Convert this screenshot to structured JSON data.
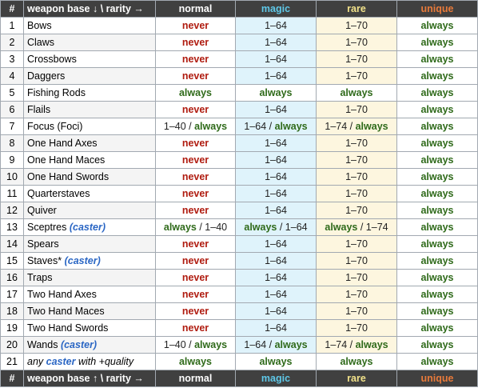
{
  "header": {
    "num": "#",
    "base": "weapon base ↓ \\ rarity →",
    "normal": "normal",
    "magic": "magic",
    "rare": "rare",
    "unique": "unique"
  },
  "footer": {
    "num": "#",
    "base": "weapon base ↑ \\ rarity →",
    "normal": "normal",
    "magic": "magic",
    "rare": "rare",
    "unique": "unique"
  },
  "rows": [
    {
      "num": "1",
      "name": "Bows",
      "normal": [
        [
          "never",
          "never"
        ]
      ],
      "magic": [
        [
          "range",
          "1–64"
        ]
      ],
      "rare": [
        [
          "range",
          "1–70"
        ]
      ],
      "unique": [
        [
          "always",
          "always"
        ]
      ]
    },
    {
      "num": "2",
      "name": "Claws",
      "normal": [
        [
          "never",
          "never"
        ]
      ],
      "magic": [
        [
          "range",
          "1–64"
        ]
      ],
      "rare": [
        [
          "range",
          "1–70"
        ]
      ],
      "unique": [
        [
          "always",
          "always"
        ]
      ]
    },
    {
      "num": "3",
      "name": "Crossbows",
      "normal": [
        [
          "never",
          "never"
        ]
      ],
      "magic": [
        [
          "range",
          "1–64"
        ]
      ],
      "rare": [
        [
          "range",
          "1–70"
        ]
      ],
      "unique": [
        [
          "always",
          "always"
        ]
      ]
    },
    {
      "num": "4",
      "name": "Daggers",
      "normal": [
        [
          "never",
          "never"
        ]
      ],
      "magic": [
        [
          "range",
          "1–64"
        ]
      ],
      "rare": [
        [
          "range",
          "1–70"
        ]
      ],
      "unique": [
        [
          "always",
          "always"
        ]
      ]
    },
    {
      "num": "5",
      "name": "Fishing Rods",
      "normal": [
        [
          "always",
          "always"
        ]
      ],
      "magic": [
        [
          "always",
          "always"
        ]
      ],
      "rare": [
        [
          "always",
          "always"
        ]
      ],
      "unique": [
        [
          "always",
          "always"
        ]
      ]
    },
    {
      "num": "6",
      "name": "Flails",
      "normal": [
        [
          "never",
          "never"
        ]
      ],
      "magic": [
        [
          "range",
          "1–64"
        ]
      ],
      "rare": [
        [
          "range",
          "1–70"
        ]
      ],
      "unique": [
        [
          "always",
          "always"
        ]
      ]
    },
    {
      "num": "7",
      "name": "Focus (Foci)",
      "normal": [
        [
          "range",
          "1–40 / "
        ],
        [
          "always",
          "always"
        ]
      ],
      "magic": [
        [
          "range",
          "1–64 / "
        ],
        [
          "always",
          "always"
        ]
      ],
      "rare": [
        [
          "range",
          "1–74 / "
        ],
        [
          "always",
          "always"
        ]
      ],
      "unique": [
        [
          "always",
          "always"
        ]
      ]
    },
    {
      "num": "8",
      "name": "One Hand Axes",
      "normal": [
        [
          "never",
          "never"
        ]
      ],
      "magic": [
        [
          "range",
          "1–64"
        ]
      ],
      "rare": [
        [
          "range",
          "1–70"
        ]
      ],
      "unique": [
        [
          "always",
          "always"
        ]
      ]
    },
    {
      "num": "9",
      "name": "One Hand Maces",
      "normal": [
        [
          "never",
          "never"
        ]
      ],
      "magic": [
        [
          "range",
          "1–64"
        ]
      ],
      "rare": [
        [
          "range",
          "1–70"
        ]
      ],
      "unique": [
        [
          "always",
          "always"
        ]
      ]
    },
    {
      "num": "10",
      "name": "One Hand Swords",
      "normal": [
        [
          "never",
          "never"
        ]
      ],
      "magic": [
        [
          "range",
          "1–64"
        ]
      ],
      "rare": [
        [
          "range",
          "1–70"
        ]
      ],
      "unique": [
        [
          "always",
          "always"
        ]
      ]
    },
    {
      "num": "11",
      "name": "Quarterstaves",
      "normal": [
        [
          "never",
          "never"
        ]
      ],
      "magic": [
        [
          "range",
          "1–64"
        ]
      ],
      "rare": [
        [
          "range",
          "1–70"
        ]
      ],
      "unique": [
        [
          "always",
          "always"
        ]
      ]
    },
    {
      "num": "12",
      "name": "Quiver",
      "normal": [
        [
          "never",
          "never"
        ]
      ],
      "magic": [
        [
          "range",
          "1–64"
        ]
      ],
      "rare": [
        [
          "range",
          "1–70"
        ]
      ],
      "unique": [
        [
          "always",
          "always"
        ]
      ]
    },
    {
      "num": "13",
      "name": "Sceptres",
      "name_note": "(caster)",
      "normal": [
        [
          "always",
          "always"
        ],
        [
          "range",
          " / 1–40"
        ]
      ],
      "magic": [
        [
          "always",
          "always"
        ],
        [
          "range",
          " / 1–64"
        ]
      ],
      "rare": [
        [
          "always",
          "always"
        ],
        [
          "range",
          " / 1–74"
        ]
      ],
      "unique": [
        [
          "always",
          "always"
        ]
      ]
    },
    {
      "num": "14",
      "name": "Spears",
      "normal": [
        [
          "never",
          "never"
        ]
      ],
      "magic": [
        [
          "range",
          "1–64"
        ]
      ],
      "rare": [
        [
          "range",
          "1–70"
        ]
      ],
      "unique": [
        [
          "always",
          "always"
        ]
      ]
    },
    {
      "num": "15",
      "name": "Staves*",
      "name_note": "(caster)",
      "normal": [
        [
          "never",
          "never"
        ]
      ],
      "magic": [
        [
          "range",
          "1–64"
        ]
      ],
      "rare": [
        [
          "range",
          "1–70"
        ]
      ],
      "unique": [
        [
          "always",
          "always"
        ]
      ]
    },
    {
      "num": "16",
      "name": "Traps",
      "normal": [
        [
          "never",
          "never"
        ]
      ],
      "magic": [
        [
          "range",
          "1–64"
        ]
      ],
      "rare": [
        [
          "range",
          "1–70"
        ]
      ],
      "unique": [
        [
          "always",
          "always"
        ]
      ]
    },
    {
      "num": "17",
      "name": "Two Hand Axes",
      "normal": [
        [
          "never",
          "never"
        ]
      ],
      "magic": [
        [
          "range",
          "1–64"
        ]
      ],
      "rare": [
        [
          "range",
          "1–70"
        ]
      ],
      "unique": [
        [
          "always",
          "always"
        ]
      ]
    },
    {
      "num": "18",
      "name": "Two Hand Maces",
      "normal": [
        [
          "never",
          "never"
        ]
      ],
      "magic": [
        [
          "range",
          "1–64"
        ]
      ],
      "rare": [
        [
          "range",
          "1–70"
        ]
      ],
      "unique": [
        [
          "always",
          "always"
        ]
      ]
    },
    {
      "num": "19",
      "name": "Two Hand Swords",
      "normal": [
        [
          "never",
          "never"
        ]
      ],
      "magic": [
        [
          "range",
          "1–64"
        ]
      ],
      "rare": [
        [
          "range",
          "1–70"
        ]
      ],
      "unique": [
        [
          "always",
          "always"
        ]
      ]
    },
    {
      "num": "20",
      "name": "Wands",
      "name_note": "(caster)",
      "normal": [
        [
          "range",
          "1–40 / "
        ],
        [
          "always",
          "always"
        ]
      ],
      "magic": [
        [
          "range",
          "1–64 / "
        ],
        [
          "always",
          "always"
        ]
      ],
      "rare": [
        [
          "range",
          "1–74 / "
        ],
        [
          "always",
          "always"
        ]
      ],
      "unique": [
        [
          "always",
          "always"
        ]
      ]
    },
    {
      "num": "21",
      "name_parts": [
        [
          "italic",
          "any "
        ],
        [
          "caster",
          "caster"
        ],
        [
          "italic",
          " with +quality"
        ]
      ],
      "normal": [
        [
          "always",
          "always"
        ]
      ],
      "magic": [
        [
          "always",
          "always"
        ]
      ],
      "rare": [
        [
          "always",
          "always"
        ]
      ],
      "unique": [
        [
          "always",
          "always"
        ]
      ]
    }
  ]
}
